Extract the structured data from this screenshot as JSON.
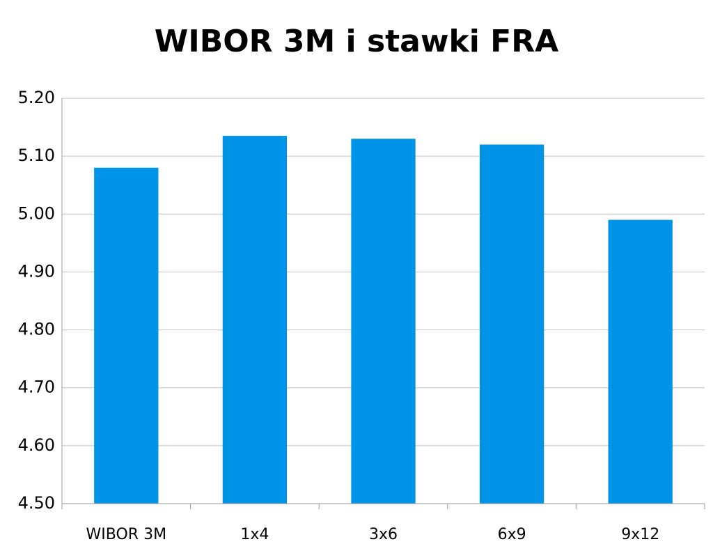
{
  "chart_data": {
    "type": "bar",
    "title": "WIBOR 3M i stawki FRA",
    "categories": [
      "WIBOR 3M",
      "1x4",
      "3x6",
      "6x9",
      "9x12"
    ],
    "values": [
      5.08,
      5.135,
      5.13,
      5.12,
      4.99
    ],
    "color": "#0094e8",
    "ylim": [
      4.5,
      5.2
    ],
    "yticks": [
      {
        "value": 4.5,
        "label": "4.50"
      },
      {
        "value": 4.6,
        "label": "4.60"
      },
      {
        "value": 4.7,
        "label": "4.70"
      },
      {
        "value": 4.8,
        "label": "4.80"
      },
      {
        "value": 4.9,
        "label": "4.90"
      },
      {
        "value": 5,
        "label": "5.00"
      },
      {
        "value": 5.1,
        "label": "5.10"
      },
      {
        "value": 5.2,
        "label": "5.20"
      }
    ],
    "grid": true
  }
}
